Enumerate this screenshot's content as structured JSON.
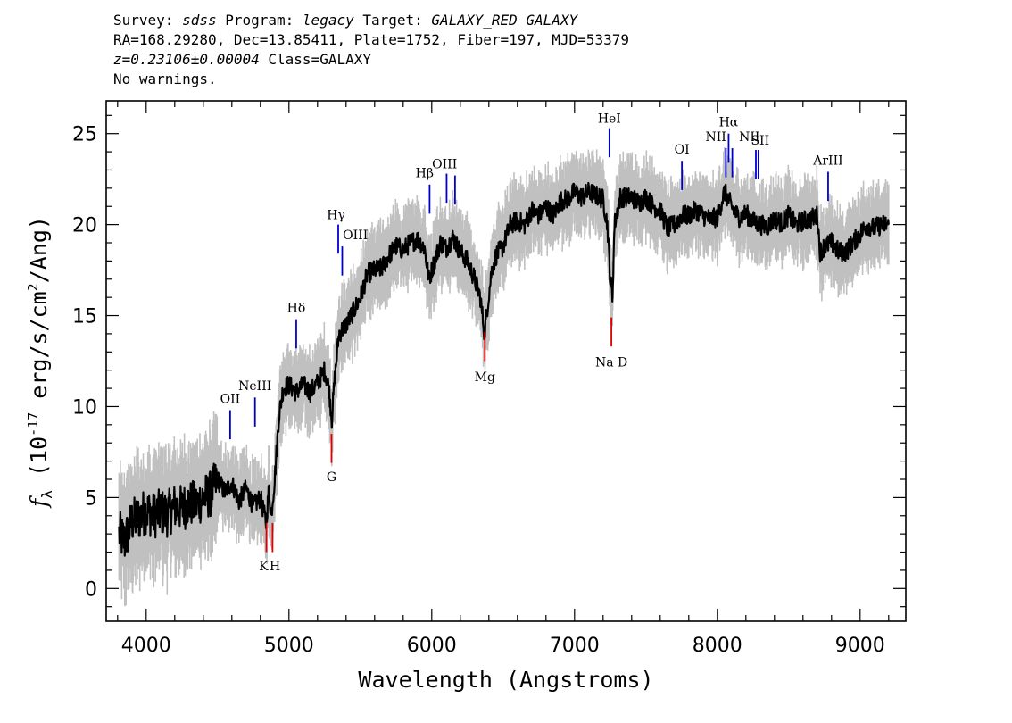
{
  "header": {
    "line1": {
      "survey_label": "Survey: ",
      "survey": "sdss",
      "program_label": " Program: ",
      "program": "legacy",
      "target_label": " Target: ",
      "target": "GALAXY_RED GALAXY"
    },
    "line2": "RA=168.29280, Dec=13.85411, Plate=1752, Fiber=197, MJD=53379",
    "line3": {
      "redshift": "z=0.23106±0.00004",
      "class_text": " Class=GALAXY"
    },
    "line4": "No warnings."
  },
  "chart_data": {
    "type": "line",
    "xlabel": "Wavelength (Angstroms)",
    "ylabel": "f_λ (10^-17 erg/s/cm^2/Ang)",
    "ylabel_parts": {
      "symbol": "f",
      "sub": "λ",
      "pre": " (10",
      "exp1": "-17",
      "mid": " erg/s/cm",
      "exp2": "2",
      "post": "/Ang)"
    },
    "xlim": [
      3720,
      9320
    ],
    "ylim": [
      -1.8,
      26.8
    ],
    "x_ticks": [
      4000,
      5000,
      6000,
      7000,
      8000,
      9000
    ],
    "x_tick_labels": [
      "4000",
      "5000",
      "6000",
      "7000",
      "8000",
      "9000"
    ],
    "y_ticks": [
      0,
      5,
      10,
      15,
      20,
      25
    ],
    "y_tick_labels": [
      "0",
      "5",
      "10",
      "15",
      "20",
      "25"
    ],
    "colors": {
      "flux": "#000000",
      "error_band": "#c0c0c0",
      "emission": "#0000cc",
      "absorption": "#dd0000"
    },
    "series": [
      {
        "points": [
          [
            3810,
            3.0
          ],
          [
            3850,
            2.6
          ],
          [
            3900,
            3.7
          ],
          [
            3950,
            3.9
          ],
          [
            4000,
            4.3
          ],
          [
            4050,
            4.0
          ],
          [
            4100,
            4.2
          ],
          [
            4150,
            4.1
          ],
          [
            4200,
            4.5
          ],
          [
            4250,
            4.4
          ],
          [
            4300,
            4.7
          ],
          [
            4350,
            4.6
          ],
          [
            4400,
            5.0
          ],
          [
            4450,
            5.2
          ],
          [
            4500,
            6.0
          ],
          [
            4550,
            5.3
          ],
          [
            4600,
            5.8
          ],
          [
            4650,
            4.8
          ],
          [
            4700,
            5.5
          ],
          [
            4750,
            4.5
          ],
          [
            4800,
            5.0
          ],
          [
            4840,
            3.6
          ],
          [
            4860,
            5.5
          ],
          [
            4875,
            4.0
          ],
          [
            4900,
            6.0
          ],
          [
            4930,
            9.5
          ],
          [
            4960,
            11.0
          ],
          [
            5000,
            11.2
          ],
          [
            5050,
            10.8
          ],
          [
            5100,
            11.2
          ],
          [
            5150,
            10.8
          ],
          [
            5200,
            11.3
          ],
          [
            5250,
            12.0
          ],
          [
            5280,
            11.0
          ],
          [
            5300,
            9.3
          ],
          [
            5320,
            11.5
          ],
          [
            5350,
            14.0
          ],
          [
            5400,
            14.5
          ],
          [
            5450,
            15.2
          ],
          [
            5500,
            16.0
          ],
          [
            5550,
            17.3
          ],
          [
            5600,
            17.5
          ],
          [
            5650,
            17.6
          ],
          [
            5700,
            18.3
          ],
          [
            5750,
            18.8
          ],
          [
            5800,
            18.6
          ],
          [
            5850,
            19.0
          ],
          [
            5900,
            19.2
          ],
          [
            5950,
            18.7
          ],
          [
            5980,
            17.0
          ],
          [
            6020,
            18.0
          ],
          [
            6060,
            19.0
          ],
          [
            6100,
            18.7
          ],
          [
            6150,
            19.3
          ],
          [
            6200,
            18.5
          ],
          [
            6250,
            18.0
          ],
          [
            6300,
            17.0
          ],
          [
            6340,
            16.0
          ],
          [
            6370,
            14.0
          ],
          [
            6390,
            15.5
          ],
          [
            6420,
            17.5
          ],
          [
            6450,
            18.3
          ],
          [
            6500,
            18.8
          ],
          [
            6550,
            20.0
          ],
          [
            6600,
            20.2
          ],
          [
            6650,
            20.0
          ],
          [
            6700,
            20.8
          ],
          [
            6750,
            20.5
          ],
          [
            6800,
            21.0
          ],
          [
            6850,
            20.5
          ],
          [
            6900,
            21.3
          ],
          [
            6950,
            21.4
          ],
          [
            7000,
            21.8
          ],
          [
            7050,
            21.5
          ],
          [
            7100,
            21.8
          ],
          [
            7150,
            21.6
          ],
          [
            7200,
            21.4
          ],
          [
            7230,
            20.0
          ],
          [
            7250,
            17.0
          ],
          [
            7265,
            16.0
          ],
          [
            7280,
            20.0
          ],
          [
            7320,
            21.5
          ],
          [
            7400,
            21.5
          ],
          [
            7450,
            21.2
          ],
          [
            7500,
            21.5
          ],
          [
            7550,
            21.0
          ],
          [
            7600,
            20.8
          ],
          [
            7650,
            19.8
          ],
          [
            7700,
            20.0
          ],
          [
            7750,
            20.5
          ],
          [
            7800,
            20.5
          ],
          [
            7850,
            20.8
          ],
          [
            7900,
            20.5
          ],
          [
            7950,
            20.3
          ],
          [
            8000,
            20.4
          ],
          [
            8050,
            21.8
          ],
          [
            8100,
            21.0
          ],
          [
            8150,
            20.4
          ],
          [
            8200,
            20.6
          ],
          [
            8250,
            20.2
          ],
          [
            8300,
            20.0
          ],
          [
            8350,
            19.9
          ],
          [
            8400,
            20.3
          ],
          [
            8450,
            20.1
          ],
          [
            8500,
            20.5
          ],
          [
            8550,
            20.0
          ],
          [
            8600,
            20.2
          ],
          [
            8650,
            20.3
          ],
          [
            8700,
            20.5
          ],
          [
            8720,
            18.5
          ],
          [
            8750,
            18.8
          ],
          [
            8800,
            19.0
          ],
          [
            8850,
            18.5
          ],
          [
            8900,
            18.5
          ],
          [
            8950,
            19.0
          ],
          [
            9000,
            19.5
          ],
          [
            9050,
            20.0
          ],
          [
            9100,
            19.8
          ],
          [
            9150,
            20.0
          ],
          [
            9200,
            20.0
          ]
        ]
      }
    ],
    "emission_lines": [
      {
        "label": "OII",
        "x": 4588,
        "y1": 8.2,
        "y2": 9.8,
        "lx": 4588,
        "ly": 10.2
      },
      {
        "label": "NeIII",
        "x": 4762,
        "y1": 8.9,
        "y2": 10.5,
        "lx": 4762,
        "ly": 10.9
      },
      {
        "label": "Hδ",
        "x": 5051,
        "y1": 13.2,
        "y2": 14.8,
        "lx": 5051,
        "ly": 15.2
      },
      {
        "label": "Hγ",
        "x": 5345,
        "y1": 18.4,
        "y2": 20.0,
        "lx": 5330,
        "ly": 20.3
      },
      {
        "label": "OIII",
        "x": 5373,
        "y1": 17.2,
        "y2": 18.8,
        "lx": 5465,
        "ly": 19.2
      },
      {
        "label": "Hβ",
        "x": 5985,
        "y1": 20.6,
        "y2": 22.2,
        "lx": 5950,
        "ly": 22.6
      },
      {
        "label": "OIII",
        "x": 6104,
        "y1": 21.2,
        "y2": 22.8,
        "lx": 6090,
        "ly": 23.1
      },
      {
        "label": "OIII",
        "x": 6163,
        "y1": 21.1,
        "y2": 22.7,
        "lx": 6163,
        "ly": 22.7,
        "hide_label": true
      },
      {
        "label": "HeI",
        "x": 7244,
        "y1": 23.7,
        "y2": 25.3,
        "lx": 7244,
        "ly": 25.6
      },
      {
        "label": "OI",
        "x": 7752,
        "y1": 21.9,
        "y2": 23.5,
        "lx": 7752,
        "ly": 23.9
      },
      {
        "label": "NII",
        "x": 8060,
        "y1": 22.6,
        "y2": 24.2,
        "lx": 7990,
        "ly": 24.6
      },
      {
        "label": "Hα",
        "x": 8079,
        "y1": 23.4,
        "y2": 25.0,
        "lx": 8079,
        "ly": 25.4
      },
      {
        "label": "NII",
        "x": 8105,
        "y1": 22.6,
        "y2": 24.2,
        "lx": 8225,
        "ly": 24.6
      },
      {
        "label": "SII",
        "x": 8270,
        "y1": 22.5,
        "y2": 24.1,
        "lx": 8300,
        "ly": 24.4
      },
      {
        "label": "SII",
        "x": 8288,
        "y1": 22.5,
        "y2": 24.1,
        "lx": 8288,
        "ly": 24.1,
        "hide_label": true
      },
      {
        "label": "ArIII",
        "x": 8776,
        "y1": 21.3,
        "y2": 22.9,
        "lx": 8776,
        "ly": 23.3
      }
    ],
    "absorption_lines": [
      {
        "label": "K",
        "x": 4842,
        "y1": 2.0,
        "y2": 3.6,
        "lx": 4822,
        "ly": 1.0
      },
      {
        "label": "H",
        "x": 4885,
        "y1": 2.0,
        "y2": 3.6,
        "lx": 4902,
        "ly": 1.0
      },
      {
        "label": "G",
        "x": 5298,
        "y1": 6.9,
        "y2": 8.5,
        "lx": 5298,
        "ly": 5.9
      },
      {
        "label": "Mg",
        "x": 6372,
        "y1": 12.5,
        "y2": 14.1,
        "lx": 6372,
        "ly": 11.4
      },
      {
        "label": "Na D",
        "x": 7258,
        "y1": 13.3,
        "y2": 14.9,
        "lx": 7258,
        "ly": 12.2
      }
    ]
  }
}
